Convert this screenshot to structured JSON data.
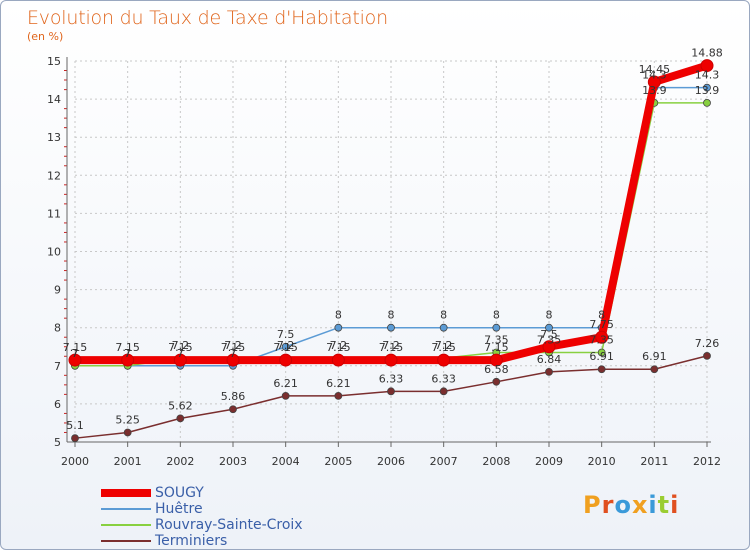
{
  "chart_data": {
    "type": "line",
    "title": "Evolution du Taux de Taxe d'Habitation",
    "ylabel": "(en %)",
    "xlabel": "",
    "ylim": [
      5,
      15
    ],
    "yticks": [
      "5",
      "6",
      "7",
      "8",
      "9",
      "10",
      "11",
      "12",
      "13",
      "14",
      "15"
    ],
    "categories": [
      "2000",
      "2001",
      "2002",
      "2003",
      "2004",
      "2005",
      "2006",
      "2007",
      "2008",
      "2009",
      "2010",
      "2011",
      "2012"
    ],
    "series": [
      {
        "name": "SOUGY",
        "color": "#ee0000",
        "values": [
          7.15,
          7.15,
          7.15,
          7.15,
          7.15,
          7.15,
          7.15,
          7.15,
          7.15,
          7.5,
          7.75,
          14.45,
          14.88
        ],
        "labels": [
          "7.15",
          "7.15",
          "7.15",
          "7.15",
          "7.15",
          "7.15",
          "7.15",
          "7.15",
          "7.15",
          "7.5",
          "7.75",
          "14.45",
          "14.88"
        ]
      },
      {
        "name": "Huêtre",
        "color": "#5b9bd5",
        "values": [
          7,
          7,
          7,
          7,
          7.5,
          8,
          8,
          8,
          8,
          8,
          8,
          14.3,
          14.3
        ],
        "labels": [
          "7",
          "7",
          "7",
          "7",
          "7.5",
          "8",
          "8",
          "8",
          "8",
          "8",
          "8",
          "14.3",
          "14.3"
        ]
      },
      {
        "name": "Rouvray-Sainte-Croix",
        "color": "#88d040",
        "values": [
          7,
          7,
          7.2,
          7.2,
          7.2,
          7.2,
          7.2,
          7.2,
          7.35,
          7.35,
          7.35,
          13.9,
          13.9
        ],
        "labels": [
          "7",
          "7",
          "7.2",
          "7.2",
          "7.2",
          "7.2",
          "7.2",
          "7.2",
          "7.35",
          "7.35",
          "7.35",
          "13.9",
          "13.9"
        ]
      },
      {
        "name": "Terminiers",
        "color": "#7a2e2e",
        "values": [
          5.1,
          5.25,
          5.62,
          5.86,
          6.21,
          6.21,
          6.33,
          6.33,
          6.58,
          6.84,
          6.91,
          6.91,
          7.26
        ],
        "labels": [
          "5.1",
          "5.25",
          "5.62",
          "5.86",
          "6.21",
          "6.21",
          "6.33",
          "6.33",
          "6.58",
          "6.84",
          "6.91",
          "6.91",
          "7.26"
        ]
      }
    ],
    "legend": "bottom-left"
  },
  "branding": {
    "logo_text": "Proxiti",
    "logo_colors": [
      "#f0a020",
      "#e05020",
      "#3a9ad9",
      "#f0a020",
      "#3a9ad9",
      "#9acd32",
      "#e05020"
    ]
  }
}
